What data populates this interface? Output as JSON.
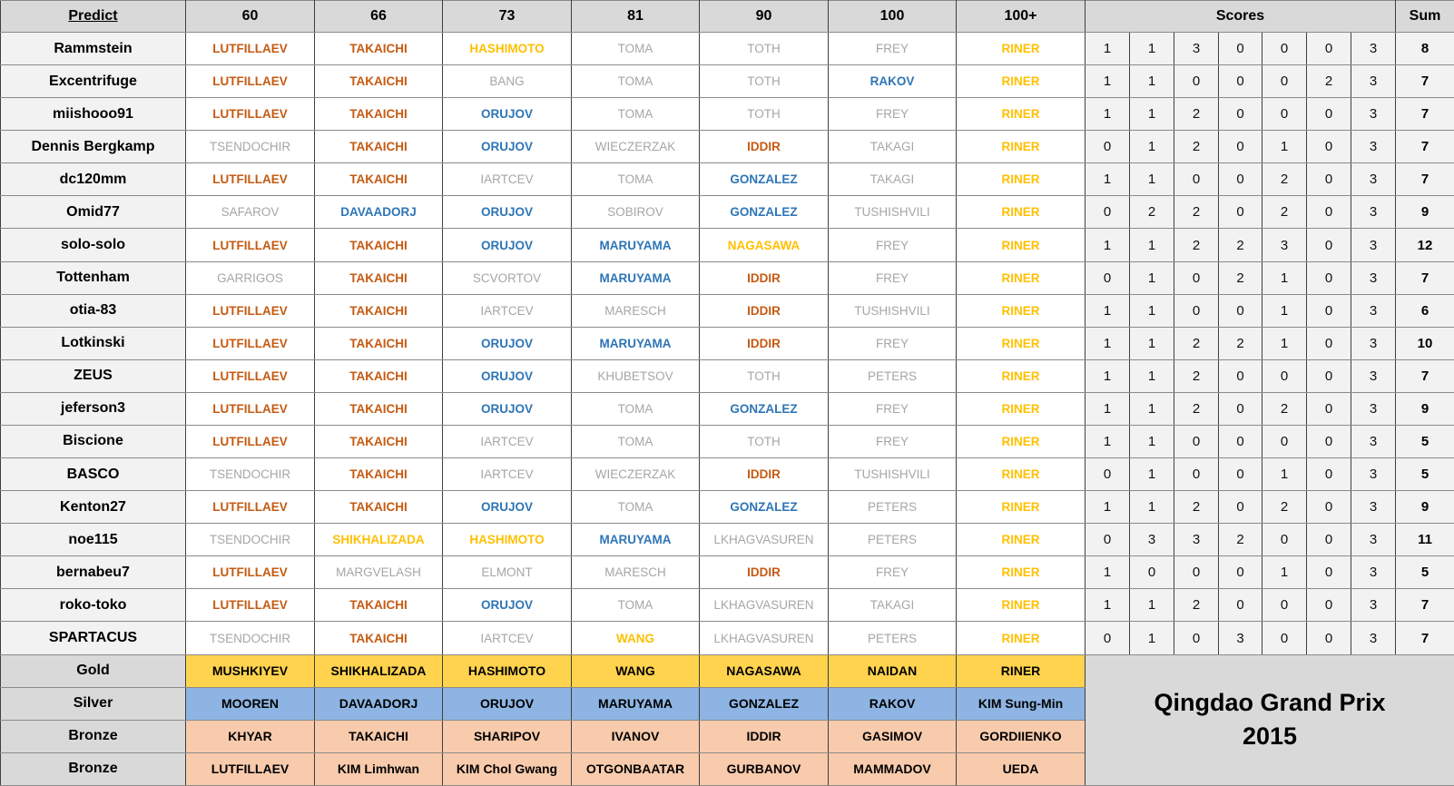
{
  "title": {
    "line1": "Qingdao Grand Prix",
    "line2": "2015"
  },
  "header": {
    "predict": "Predict",
    "categories": [
      "60",
      "66",
      "73",
      "81",
      "90",
      "100",
      "100+"
    ],
    "scores": "Scores",
    "sum": "Sum"
  },
  "colors": {
    "header_bg": "#d9d9d9",
    "cell_bg": "#f2f2f2",
    "gold_text": "#ffc000",
    "silver_text": "#2e75b6",
    "bronze_text": "#c55a11",
    "none_text": "#a6a6a6",
    "gold_bg": "#ffd34d",
    "silver_bg": "#8db4e2",
    "bronze_bg": "#f8cbad"
  },
  "rows": [
    {
      "name": "Rammstein",
      "predictions": [
        {
          "name": "LUTFILLAEV",
          "medal": "bronze"
        },
        {
          "name": "TAKAICHI",
          "medal": "bronze"
        },
        {
          "name": "HASHIMOTO",
          "medal": "gold"
        },
        {
          "name": "TOMA",
          "medal": "none"
        },
        {
          "name": "TOTH",
          "medal": "none"
        },
        {
          "name": "FREY",
          "medal": "none"
        },
        {
          "name": "RINER",
          "medal": "gold"
        }
      ],
      "scores": [
        1,
        1,
        3,
        0,
        0,
        0,
        3
      ],
      "sum": 8
    },
    {
      "name": "Excentrifuge",
      "predictions": [
        {
          "name": "LUTFILLAEV",
          "medal": "bronze"
        },
        {
          "name": "TAKAICHI",
          "medal": "bronze"
        },
        {
          "name": "BANG",
          "medal": "none"
        },
        {
          "name": "TOMA",
          "medal": "none"
        },
        {
          "name": "TOTH",
          "medal": "none"
        },
        {
          "name": "RAKOV",
          "medal": "silver"
        },
        {
          "name": "RINER",
          "medal": "gold"
        }
      ],
      "scores": [
        1,
        1,
        0,
        0,
        0,
        2,
        3
      ],
      "sum": 7
    },
    {
      "name": "miishooo91",
      "predictions": [
        {
          "name": "LUTFILLAEV",
          "medal": "bronze"
        },
        {
          "name": "TAKAICHI",
          "medal": "bronze"
        },
        {
          "name": "ORUJOV",
          "medal": "silver"
        },
        {
          "name": "TOMA",
          "medal": "none"
        },
        {
          "name": "TOTH",
          "medal": "none"
        },
        {
          "name": "FREY",
          "medal": "none"
        },
        {
          "name": "RINER",
          "medal": "gold"
        }
      ],
      "scores": [
        1,
        1,
        2,
        0,
        0,
        0,
        3
      ],
      "sum": 7
    },
    {
      "name": "Dennis Bergkamp",
      "predictions": [
        {
          "name": "TSENDOCHIR",
          "medal": "none"
        },
        {
          "name": "TAKAICHI",
          "medal": "bronze"
        },
        {
          "name": "ORUJOV",
          "medal": "silver"
        },
        {
          "name": "WIECZERZAK",
          "medal": "none"
        },
        {
          "name": "IDDIR",
          "medal": "bronze"
        },
        {
          "name": "TAKAGI",
          "medal": "none"
        },
        {
          "name": "RINER",
          "medal": "gold"
        }
      ],
      "scores": [
        0,
        1,
        2,
        0,
        1,
        0,
        3
      ],
      "sum": 7
    },
    {
      "name": "dc120mm",
      "predictions": [
        {
          "name": "LUTFILLAEV",
          "medal": "bronze"
        },
        {
          "name": "TAKAICHI",
          "medal": "bronze"
        },
        {
          "name": "IARTCEV",
          "medal": "none"
        },
        {
          "name": "TOMA",
          "medal": "none"
        },
        {
          "name": "GONZALEZ",
          "medal": "silver"
        },
        {
          "name": "TAKAGI",
          "medal": "none"
        },
        {
          "name": "RINER",
          "medal": "gold"
        }
      ],
      "scores": [
        1,
        1,
        0,
        0,
        2,
        0,
        3
      ],
      "sum": 7
    },
    {
      "name": "Omid77",
      "predictions": [
        {
          "name": "SAFAROV",
          "medal": "none"
        },
        {
          "name": "DAVAADORJ",
          "medal": "silver"
        },
        {
          "name": "ORUJOV",
          "medal": "silver"
        },
        {
          "name": "SOBIROV",
          "medal": "none"
        },
        {
          "name": "GONZALEZ",
          "medal": "silver"
        },
        {
          "name": "TUSHISHVILI",
          "medal": "none"
        },
        {
          "name": "RINER",
          "medal": "gold"
        }
      ],
      "scores": [
        0,
        2,
        2,
        0,
        2,
        0,
        3
      ],
      "sum": 9
    },
    {
      "name": "solo-solo",
      "predictions": [
        {
          "name": "LUTFILLAEV",
          "medal": "bronze"
        },
        {
          "name": "TAKAICHI",
          "medal": "bronze"
        },
        {
          "name": "ORUJOV",
          "medal": "silver"
        },
        {
          "name": "MARUYAMA",
          "medal": "silver"
        },
        {
          "name": "NAGASAWA",
          "medal": "gold"
        },
        {
          "name": "FREY",
          "medal": "none"
        },
        {
          "name": "RINER",
          "medal": "gold"
        }
      ],
      "scores": [
        1,
        1,
        2,
        2,
        3,
        0,
        3
      ],
      "sum": 12
    },
    {
      "name": "Tottenham",
      "predictions": [
        {
          "name": "GARRIGOS",
          "medal": "none"
        },
        {
          "name": "TAKAICHI",
          "medal": "bronze"
        },
        {
          "name": "SCVORTOV",
          "medal": "none"
        },
        {
          "name": "MARUYAMA",
          "medal": "silver"
        },
        {
          "name": "IDDIR",
          "medal": "bronze"
        },
        {
          "name": "FREY",
          "medal": "none"
        },
        {
          "name": "RINER",
          "medal": "gold"
        }
      ],
      "scores": [
        0,
        1,
        0,
        2,
        1,
        0,
        3
      ],
      "sum": 7
    },
    {
      "name": "otia-83",
      "predictions": [
        {
          "name": "LUTFILLAEV",
          "medal": "bronze"
        },
        {
          "name": "TAKAICHI",
          "medal": "bronze"
        },
        {
          "name": "IARTCEV",
          "medal": "none"
        },
        {
          "name": "MARESCH",
          "medal": "none"
        },
        {
          "name": "IDDIR",
          "medal": "bronze"
        },
        {
          "name": "TUSHISHVILI",
          "medal": "none"
        },
        {
          "name": "RINER",
          "medal": "gold"
        }
      ],
      "scores": [
        1,
        1,
        0,
        0,
        1,
        0,
        3
      ],
      "sum": 6
    },
    {
      "name": "Lotkinski",
      "predictions": [
        {
          "name": "LUTFILLAEV",
          "medal": "bronze"
        },
        {
          "name": "TAKAICHI",
          "medal": "bronze"
        },
        {
          "name": "ORUJOV",
          "medal": "silver"
        },
        {
          "name": "MARUYAMA",
          "medal": "silver"
        },
        {
          "name": "IDDIR",
          "medal": "bronze"
        },
        {
          "name": "FREY",
          "medal": "none"
        },
        {
          "name": "RINER",
          "medal": "gold"
        }
      ],
      "scores": [
        1,
        1,
        2,
        2,
        1,
        0,
        3
      ],
      "sum": 10
    },
    {
      "name": "ZEUS",
      "predictions": [
        {
          "name": "LUTFILLAEV",
          "medal": "bronze"
        },
        {
          "name": "TAKAICHI",
          "medal": "bronze"
        },
        {
          "name": "ORUJOV",
          "medal": "silver"
        },
        {
          "name": "KHUBETSOV",
          "medal": "none"
        },
        {
          "name": "TOTH",
          "medal": "none"
        },
        {
          "name": "PETERS",
          "medal": "none"
        },
        {
          "name": "RINER",
          "medal": "gold"
        }
      ],
      "scores": [
        1,
        1,
        2,
        0,
        0,
        0,
        3
      ],
      "sum": 7
    },
    {
      "name": "jeferson3",
      "predictions": [
        {
          "name": "LUTFILLAEV",
          "medal": "bronze"
        },
        {
          "name": "TAKAICHI",
          "medal": "bronze"
        },
        {
          "name": "ORUJOV",
          "medal": "silver"
        },
        {
          "name": "TOMA",
          "medal": "none"
        },
        {
          "name": "GONZALEZ",
          "medal": "silver"
        },
        {
          "name": "FREY",
          "medal": "none"
        },
        {
          "name": "RINER",
          "medal": "gold"
        }
      ],
      "scores": [
        1,
        1,
        2,
        0,
        2,
        0,
        3
      ],
      "sum": 9
    },
    {
      "name": "Biscione",
      "predictions": [
        {
          "name": "LUTFILLAEV",
          "medal": "bronze"
        },
        {
          "name": "TAKAICHI",
          "medal": "bronze"
        },
        {
          "name": "IARTCEV",
          "medal": "none"
        },
        {
          "name": "TOMA",
          "medal": "none"
        },
        {
          "name": "TOTH",
          "medal": "none"
        },
        {
          "name": "FREY",
          "medal": "none"
        },
        {
          "name": "RINER",
          "medal": "gold"
        }
      ],
      "scores": [
        1,
        1,
        0,
        0,
        0,
        0,
        3
      ],
      "sum": 5
    },
    {
      "name": "BASCO",
      "predictions": [
        {
          "name": "TSENDOCHIR",
          "medal": "none"
        },
        {
          "name": "TAKAICHI",
          "medal": "bronze"
        },
        {
          "name": "IARTCEV",
          "medal": "none"
        },
        {
          "name": "WIECZERZAK",
          "medal": "none"
        },
        {
          "name": "IDDIR",
          "medal": "bronze"
        },
        {
          "name": "TUSHISHVILI",
          "medal": "none"
        },
        {
          "name": "RINER",
          "medal": "gold"
        }
      ],
      "scores": [
        0,
        1,
        0,
        0,
        1,
        0,
        3
      ],
      "sum": 5
    },
    {
      "name": "Kenton27",
      "predictions": [
        {
          "name": "LUTFILLAEV",
          "medal": "bronze"
        },
        {
          "name": "TAKAICHI",
          "medal": "bronze"
        },
        {
          "name": "ORUJOV",
          "medal": "silver"
        },
        {
          "name": "TOMA",
          "medal": "none"
        },
        {
          "name": "GONZALEZ",
          "medal": "silver"
        },
        {
          "name": "PETERS",
          "medal": "none"
        },
        {
          "name": "RINER",
          "medal": "gold"
        }
      ],
      "scores": [
        1,
        1,
        2,
        0,
        2,
        0,
        3
      ],
      "sum": 9
    },
    {
      "name": "noe115",
      "predictions": [
        {
          "name": "TSENDOCHIR",
          "medal": "none"
        },
        {
          "name": "SHIKHALIZADA",
          "medal": "gold"
        },
        {
          "name": "HASHIMOTO",
          "medal": "gold"
        },
        {
          "name": "MARUYAMA",
          "medal": "silver"
        },
        {
          "name": "LKHAGVASUREN",
          "medal": "none"
        },
        {
          "name": "PETERS",
          "medal": "none"
        },
        {
          "name": "RINER",
          "medal": "gold"
        }
      ],
      "scores": [
        0,
        3,
        3,
        2,
        0,
        0,
        3
      ],
      "sum": 11
    },
    {
      "name": "bernabeu7",
      "predictions": [
        {
          "name": "LUTFILLAEV",
          "medal": "bronze"
        },
        {
          "name": "MARGVELASH",
          "medal": "none"
        },
        {
          "name": "ELMONT",
          "medal": "none"
        },
        {
          "name": "MARESCH",
          "medal": "none"
        },
        {
          "name": "IDDIR",
          "medal": "bronze"
        },
        {
          "name": "FREY",
          "medal": "none"
        },
        {
          "name": "RINER",
          "medal": "gold"
        }
      ],
      "scores": [
        1,
        0,
        0,
        0,
        1,
        0,
        3
      ],
      "sum": 5
    },
    {
      "name": "roko-toko",
      "predictions": [
        {
          "name": "LUTFILLAEV",
          "medal": "bronze"
        },
        {
          "name": "TAKAICHI",
          "medal": "bronze"
        },
        {
          "name": "ORUJOV",
          "medal": "silver"
        },
        {
          "name": "TOMA",
          "medal": "none"
        },
        {
          "name": "LKHAGVASUREN",
          "medal": "none"
        },
        {
          "name": "TAKAGI",
          "medal": "none"
        },
        {
          "name": "RINER",
          "medal": "gold"
        }
      ],
      "scores": [
        1,
        1,
        2,
        0,
        0,
        0,
        3
      ],
      "sum": 7
    },
    {
      "name": "SPARTACUS",
      "predictions": [
        {
          "name": "TSENDOCHIR",
          "medal": "none"
        },
        {
          "name": "TAKAICHI",
          "medal": "bronze"
        },
        {
          "name": "IARTCEV",
          "medal": "none"
        },
        {
          "name": "WANG",
          "medal": "gold"
        },
        {
          "name": "LKHAGVASUREN",
          "medal": "none"
        },
        {
          "name": "PETERS",
          "medal": "none"
        },
        {
          "name": "RINER",
          "medal": "gold"
        }
      ],
      "scores": [
        0,
        1,
        0,
        3,
        0,
        0,
        3
      ],
      "sum": 7
    }
  ],
  "results": [
    {
      "label": "Gold",
      "medal": "gold",
      "names": [
        "MUSHKIYEV",
        "SHIKHALIZADA",
        "HASHIMOTO",
        "WANG",
        "NAGASAWA",
        "NAIDAN",
        "RINER"
      ]
    },
    {
      "label": "Silver",
      "medal": "silver",
      "names": [
        "MOOREN",
        "DAVAADORJ",
        "ORUJOV",
        "MARUYAMA",
        "GONZALEZ",
        "RAKOV",
        "KIM Sung-Min"
      ]
    },
    {
      "label": "Bronze",
      "medal": "bronze",
      "names": [
        "KHYAR",
        "TAKAICHI",
        "SHARIPOV",
        "IVANOV",
        "IDDIR",
        "GASIMOV",
        "GORDIIENKO"
      ]
    },
    {
      "label": "Bronze",
      "medal": "bronze",
      "names": [
        "LUTFILLAEV",
        "KIM Limhwan",
        "KIM Chol Gwang",
        "OTGONBAATAR",
        "GURBANOV",
        "MAMMADOV",
        "UEDA"
      ]
    }
  ]
}
